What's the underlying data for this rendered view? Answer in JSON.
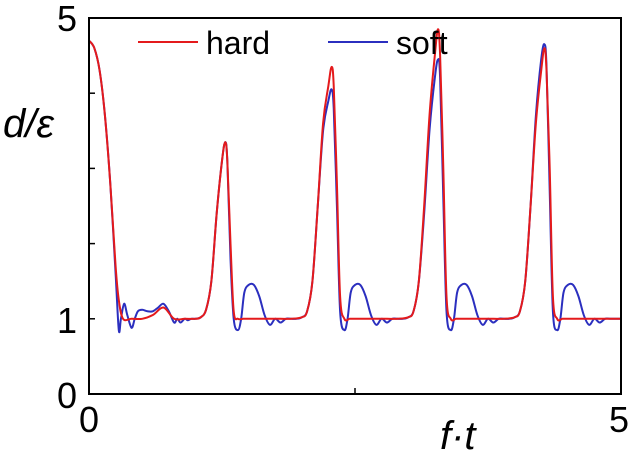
{
  "chart_data": {
    "type": "line",
    "xlabel": "f·t",
    "ylabel": "d/ε",
    "xlim": [
      0,
      5
    ],
    "ylim": [
      0,
      5
    ],
    "x_tick_labels": [
      {
        "value": 0,
        "label": "0"
      },
      {
        "value": 5,
        "label": "5"
      }
    ],
    "y_tick_labels": [
      {
        "value": 0,
        "label": "0"
      },
      {
        "value": 1,
        "label": "1"
      },
      {
        "value": 5,
        "label": "5"
      }
    ],
    "x_ticks": [
      0,
      2.5,
      5
    ],
    "y_ticks": [
      0,
      1,
      2,
      3,
      4,
      5
    ],
    "grid": false,
    "legend_position": "top",
    "series": [
      {
        "name": "hard",
        "color": "#e41a1c",
        "x": [
          0,
          0.05,
          0.1,
          0.15,
          0.2,
          0.25,
          0.28,
          0.32,
          0.4,
          0.5,
          0.6,
          0.7,
          0.8,
          0.9,
          1.0,
          1.05,
          1.1,
          1.15,
          1.2,
          1.25,
          1.28,
          1.3,
          1.33,
          1.36,
          1.4,
          1.45,
          1.5,
          1.6,
          1.7,
          1.8,
          1.9,
          2.0,
          2.05,
          2.1,
          2.15,
          2.2,
          2.25,
          2.28,
          2.3,
          2.33,
          2.36,
          2.4,
          2.45,
          2.5,
          2.6,
          2.7,
          2.8,
          2.9,
          3.0,
          3.05,
          3.1,
          3.15,
          3.2,
          3.25,
          3.28,
          3.3,
          3.33,
          3.36,
          3.4,
          3.45,
          3.5,
          3.6,
          3.7,
          3.8,
          3.9,
          4.0,
          4.05,
          4.1,
          4.15,
          4.2,
          4.25,
          4.28,
          4.3,
          4.33,
          4.36,
          4.4,
          4.45,
          4.5,
          4.6,
          4.7,
          4.8,
          4.9,
          5.0
        ],
        "y": [
          4.7,
          4.6,
          4.3,
          3.7,
          2.8,
          1.7,
          1.25,
          1.0,
          1.0,
          1.0,
          1.05,
          1.15,
          1.0,
          1.0,
          1.0,
          1.02,
          1.12,
          1.5,
          2.4,
          3.1,
          3.35,
          3.1,
          2.0,
          1.1,
          1.0,
          1.0,
          1.0,
          1.0,
          1.0,
          1.0,
          1.0,
          1.02,
          1.1,
          1.5,
          2.5,
          3.6,
          4.1,
          4.35,
          4.1,
          2.8,
          1.3,
          1.0,
          1.0,
          1.0,
          1.0,
          1.0,
          1.0,
          1.0,
          1.02,
          1.1,
          1.5,
          2.5,
          3.7,
          4.5,
          4.85,
          4.5,
          3.0,
          1.3,
          1.0,
          1.0,
          1.0,
          1.0,
          1.0,
          1.0,
          1.0,
          1.02,
          1.1,
          1.5,
          2.5,
          3.6,
          4.3,
          4.6,
          4.3,
          3.0,
          1.3,
          1.0,
          1.0,
          1.0,
          1.0,
          1.0,
          1.0,
          1.0,
          1.0
        ]
      },
      {
        "name": "soft",
        "color": "#2b2fbf",
        "x": [
          0,
          0.05,
          0.1,
          0.15,
          0.2,
          0.25,
          0.28,
          0.3,
          0.33,
          0.36,
          0.4,
          0.43,
          0.46,
          0.5,
          0.55,
          0.6,
          0.65,
          0.7,
          0.75,
          0.8,
          0.83,
          0.86,
          0.9,
          0.93,
          0.96,
          1.0,
          1.05,
          1.1,
          1.15,
          1.2,
          1.25,
          1.28,
          1.3,
          1.33,
          1.36,
          1.4,
          1.43,
          1.46,
          1.5,
          1.55,
          1.6,
          1.65,
          1.7,
          1.75,
          1.8,
          1.85,
          1.9,
          1.95,
          2.0,
          2.05,
          2.1,
          2.15,
          2.2,
          2.25,
          2.28,
          2.3,
          2.33,
          2.36,
          2.4,
          2.43,
          2.46,
          2.5,
          2.55,
          2.6,
          2.65,
          2.7,
          2.75,
          2.8,
          2.85,
          2.9,
          2.95,
          3.0,
          3.05,
          3.1,
          3.15,
          3.2,
          3.25,
          3.28,
          3.3,
          3.33,
          3.36,
          3.4,
          3.43,
          3.46,
          3.5,
          3.55,
          3.6,
          3.65,
          3.7,
          3.75,
          3.8,
          3.85,
          3.9,
          3.95,
          4.0,
          4.05,
          4.1,
          4.15,
          4.2,
          4.25,
          4.28,
          4.3,
          4.33,
          4.36,
          4.4,
          4.43,
          4.46,
          4.5,
          4.55,
          4.6,
          4.65,
          4.7,
          4.75,
          4.8,
          4.85,
          4.9,
          4.95,
          5.0
        ],
        "y": [
          4.7,
          4.6,
          4.3,
          3.7,
          2.8,
          1.6,
          0.85,
          1.0,
          1.2,
          1.05,
          0.88,
          1.0,
          1.1,
          1.12,
          1.1,
          1.1,
          1.15,
          1.2,
          1.1,
          0.95,
          1.0,
          0.95,
          1.0,
          0.98,
          1.0,
          1.0,
          1.02,
          1.12,
          1.5,
          2.4,
          3.1,
          3.35,
          3.1,
          1.8,
          1.0,
          0.85,
          1.0,
          1.35,
          1.45,
          1.45,
          1.3,
          1.05,
          0.92,
          1.0,
          0.95,
          1.0,
          1.0,
          1.0,
          1.02,
          1.1,
          1.5,
          2.5,
          3.5,
          3.9,
          4.05,
          3.8,
          2.5,
          1.1,
          0.85,
          1.0,
          1.35,
          1.45,
          1.45,
          1.3,
          1.05,
          0.92,
          1.0,
          0.95,
          1.0,
          1.0,
          1.0,
          1.02,
          1.1,
          1.5,
          2.4,
          3.5,
          4.2,
          4.45,
          4.2,
          2.6,
          1.1,
          0.85,
          1.0,
          1.35,
          1.45,
          1.45,
          1.3,
          1.05,
          0.92,
          1.0,
          0.95,
          1.0,
          1.0,
          1.0,
          1.02,
          1.1,
          1.5,
          2.5,
          3.7,
          4.45,
          4.65,
          4.35,
          2.7,
          1.1,
          0.85,
          1.0,
          1.35,
          1.45,
          1.45,
          1.3,
          1.05,
          0.92,
          1.0,
          0.95,
          1.0,
          1.0,
          1.0,
          1.0
        ]
      }
    ]
  }
}
